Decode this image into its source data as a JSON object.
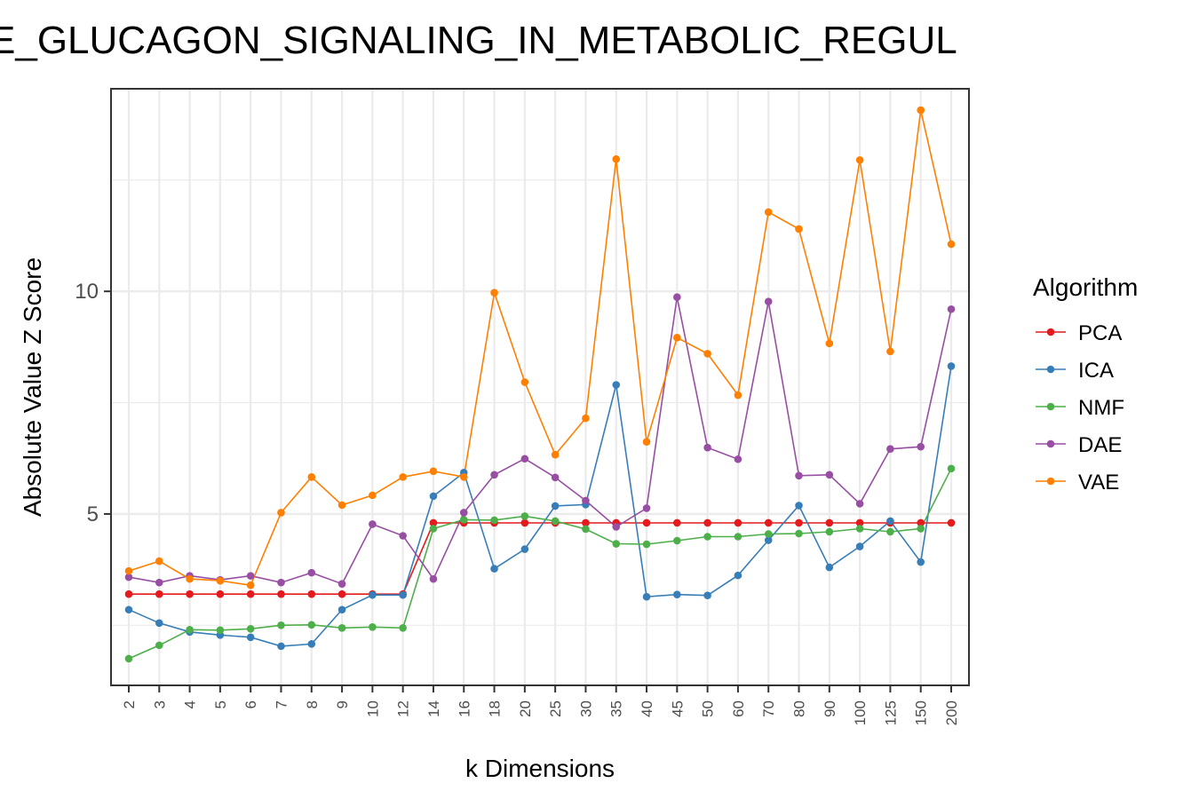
{
  "chart_data": {
    "type": "line",
    "title": "E_GLUCAGON_SIGNALING_IN_METABOLIC_REGUL",
    "xlabel": "k Dimensions",
    "ylabel": "Absolute Value Z Score",
    "categories": [
      "2",
      "3",
      "4",
      "5",
      "6",
      "7",
      "8",
      "9",
      "10",
      "12",
      "14",
      "16",
      "18",
      "20",
      "25",
      "30",
      "35",
      "40",
      "45",
      "50",
      "60",
      "70",
      "80",
      "90",
      "100",
      "125",
      "150",
      "200"
    ],
    "yticks": [
      5,
      10
    ],
    "ylim": [
      1.15,
      14.55
    ],
    "grid": true,
    "legend": {
      "title": "Algorithm",
      "position": "right"
    },
    "series": [
      {
        "name": "PCA",
        "color": "#e41a1c",
        "values": [
          3.2,
          3.2,
          3.2,
          3.2,
          3.2,
          3.2,
          3.2,
          3.2,
          3.2,
          3.2,
          4.8,
          4.8,
          4.8,
          4.8,
          4.8,
          4.8,
          4.8,
          4.8,
          4.8,
          4.8,
          4.8,
          4.8,
          4.8,
          4.8,
          4.8,
          4.8,
          4.8,
          4.8
        ]
      },
      {
        "name": "ICA",
        "color": "#377eb8",
        "values": [
          2.85,
          2.55,
          2.35,
          2.28,
          2.23,
          2.03,
          2.08,
          2.85,
          3.18,
          3.18,
          5.4,
          5.93,
          3.77,
          4.21,
          5.18,
          5.21,
          7.9,
          3.14,
          3.19,
          3.17,
          3.62,
          4.41,
          5.19,
          3.8,
          4.27,
          4.84,
          3.92,
          8.32
        ]
      },
      {
        "name": "NMF",
        "color": "#4daf4a",
        "values": [
          1.75,
          2.05,
          2.4,
          2.39,
          2.42,
          2.5,
          2.51,
          2.44,
          2.46,
          2.44,
          4.67,
          4.87,
          4.86,
          4.95,
          4.84,
          4.66,
          4.33,
          4.32,
          4.4,
          4.49,
          4.49,
          4.55,
          4.56,
          4.6,
          4.67,
          4.6,
          4.67,
          6.02
        ]
      },
      {
        "name": "DAE",
        "color": "#984ea3",
        "values": [
          3.58,
          3.46,
          3.61,
          3.52,
          3.61,
          3.46,
          3.68,
          3.43,
          4.77,
          4.51,
          3.54,
          5.03,
          5.88,
          6.24,
          5.82,
          5.3,
          4.71,
          5.13,
          9.87,
          6.49,
          6.23,
          9.77,
          5.86,
          5.88,
          5.23,
          6.46,
          6.51,
          9.6
        ]
      },
      {
        "name": "VAE",
        "color": "#ff7f00",
        "values": [
          3.72,
          3.94,
          3.54,
          3.5,
          3.4,
          5.03,
          5.83,
          5.2,
          5.42,
          5.83,
          5.96,
          5.83,
          9.97,
          7.96,
          6.33,
          7.15,
          12.97,
          6.62,
          8.96,
          8.6,
          7.67,
          11.78,
          11.4,
          8.83,
          12.95,
          8.65,
          14.07,
          11.06
        ]
      }
    ]
  }
}
